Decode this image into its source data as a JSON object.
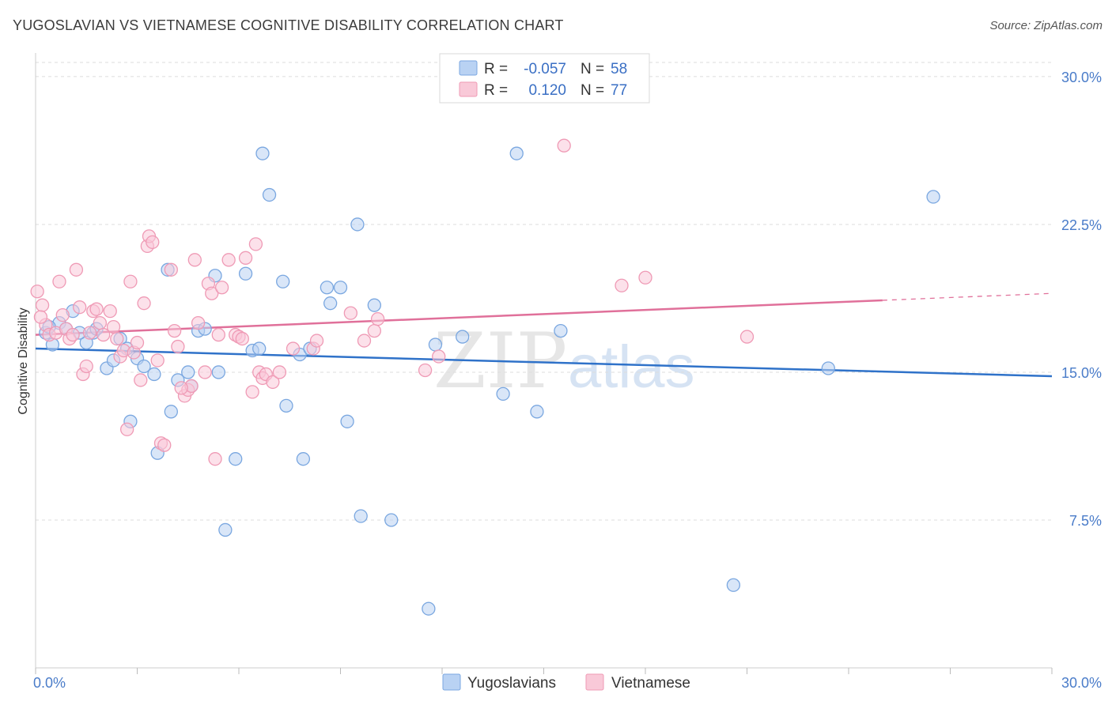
{
  "header": {
    "title": "YUGOSLAVIAN VS VIETNAMESE COGNITIVE DISABILITY CORRELATION CHART",
    "source": "Source: ZipAtlas.com"
  },
  "watermark": {
    "zip": "ZIP",
    "atlas": "atlas"
  },
  "chart_data": {
    "type": "scatter",
    "xlabel": "",
    "ylabel": "Cognitive Disability",
    "xlim": [
      0,
      30
    ],
    "ylim": [
      0,
      31.2
    ],
    "x_tick_labels": [
      {
        "value": 0,
        "label": "0.0%"
      },
      {
        "value": 30,
        "label": "30.0%"
      }
    ],
    "y_tick_labels": [
      {
        "value": 7.5,
        "label": "7.5%"
      },
      {
        "value": 15,
        "label": "15.0%"
      },
      {
        "value": 22.5,
        "label": "22.5%"
      },
      {
        "value": 30,
        "label": "30.0%"
      }
    ],
    "grid": true,
    "legend": {
      "position": "top-center",
      "rows": [
        {
          "r_label": "R =",
          "r_value": "-0.057",
          "n_label": "N =",
          "n_value": "58"
        },
        {
          "r_label": "R =",
          "r_value": "0.120",
          "n_label": "N =",
          "n_value": "77"
        }
      ]
    },
    "series": [
      {
        "name": "Yugoslavians",
        "color": "#7aa7e0",
        "fill": "#b9d2f3",
        "trend_color": "#2f72c9",
        "trend": {
          "x0": 0,
          "y0": 16.2,
          "x1": 30,
          "y1": 14.8,
          "dashed_from": null
        },
        "points": [
          [
            0.3,
            17.0
          ],
          [
            0.5,
            16.4
          ],
          [
            0.7,
            17.5
          ],
          [
            0.9,
            17.2
          ],
          [
            1.1,
            18.1
          ],
          [
            1.5,
            16.5
          ],
          [
            1.7,
            17.0
          ],
          [
            1.8,
            17.2
          ],
          [
            2.1,
            15.2
          ],
          [
            2.3,
            15.6
          ],
          [
            2.5,
            16.7
          ],
          [
            2.7,
            16.2
          ],
          [
            3.0,
            15.7
          ],
          [
            3.2,
            15.3
          ],
          [
            2.8,
            12.5
          ],
          [
            3.5,
            14.9
          ],
          [
            3.6,
            10.9
          ],
          [
            3.9,
            20.2
          ],
          [
            4.0,
            13.0
          ],
          [
            4.2,
            14.6
          ],
          [
            4.5,
            15.0
          ],
          [
            4.6,
            14.3
          ],
          [
            4.8,
            17.1
          ],
          [
            5.0,
            17.2
          ],
          [
            5.3,
            19.9
          ],
          [
            5.4,
            15.0
          ],
          [
            5.6,
            7.0
          ],
          [
            5.9,
            10.6
          ],
          [
            6.2,
            20.0
          ],
          [
            6.4,
            16.1
          ],
          [
            6.6,
            16.2
          ],
          [
            6.7,
            26.1
          ],
          [
            6.9,
            24.0
          ],
          [
            7.3,
            19.6
          ],
          [
            7.4,
            13.3
          ],
          [
            7.8,
            15.9
          ],
          [
            7.9,
            10.6
          ],
          [
            8.1,
            16.2
          ],
          [
            8.6,
            19.3
          ],
          [
            8.7,
            18.5
          ],
          [
            9.0,
            19.3
          ],
          [
            9.2,
            12.5
          ],
          [
            9.5,
            22.5
          ],
          [
            9.6,
            7.7
          ],
          [
            10.0,
            18.4
          ],
          [
            10.5,
            7.5
          ],
          [
            11.6,
            3.0
          ],
          [
            11.8,
            16.4
          ],
          [
            12.6,
            16.8
          ],
          [
            13.8,
            13.9
          ],
          [
            14.2,
            26.1
          ],
          [
            14.8,
            13.0
          ],
          [
            15.5,
            17.1
          ],
          [
            20.6,
            4.2
          ],
          [
            23.4,
            15.2
          ],
          [
            26.5,
            23.9
          ],
          [
            0.4,
            17.3
          ],
          [
            1.3,
            17.0
          ]
        ]
      },
      {
        "name": "Vietnamese",
        "color": "#ef9ab5",
        "fill": "#f9c9d8",
        "trend_color": "#e0709a",
        "trend": {
          "x0": 0,
          "y0": 16.9,
          "x1": 30,
          "y1": 19.0,
          "dashed_from": 25
        },
        "points": [
          [
            0.05,
            19.1
          ],
          [
            0.2,
            18.4
          ],
          [
            0.3,
            17.4
          ],
          [
            0.4,
            16.9
          ],
          [
            0.6,
            17.0
          ],
          [
            0.7,
            19.6
          ],
          [
            0.8,
            17.9
          ],
          [
            0.9,
            17.2
          ],
          [
            1.0,
            16.7
          ],
          [
            1.1,
            16.9
          ],
          [
            1.2,
            20.2
          ],
          [
            1.3,
            18.3
          ],
          [
            1.4,
            14.9
          ],
          [
            1.5,
            15.3
          ],
          [
            1.7,
            18.1
          ],
          [
            1.8,
            18.2
          ],
          [
            1.9,
            17.5
          ],
          [
            2.0,
            16.9
          ],
          [
            2.2,
            18.1
          ],
          [
            2.4,
            16.7
          ],
          [
            2.5,
            15.8
          ],
          [
            2.6,
            16.1
          ],
          [
            2.7,
            12.1
          ],
          [
            2.8,
            19.6
          ],
          [
            2.9,
            16.0
          ],
          [
            3.1,
            14.6
          ],
          [
            3.2,
            18.5
          ],
          [
            3.3,
            21.4
          ],
          [
            3.35,
            21.9
          ],
          [
            3.45,
            21.6
          ],
          [
            3.6,
            15.6
          ],
          [
            3.7,
            11.4
          ],
          [
            3.8,
            11.3
          ],
          [
            4.0,
            20.2
          ],
          [
            4.1,
            17.1
          ],
          [
            4.2,
            16.3
          ],
          [
            4.4,
            13.8
          ],
          [
            4.5,
            14.1
          ],
          [
            4.6,
            14.3
          ],
          [
            4.7,
            20.7
          ],
          [
            4.8,
            17.5
          ],
          [
            5.0,
            15.0
          ],
          [
            5.1,
            19.5
          ],
          [
            5.2,
            19.0
          ],
          [
            5.3,
            10.6
          ],
          [
            5.5,
            19.3
          ],
          [
            5.7,
            20.7
          ],
          [
            5.9,
            16.9
          ],
          [
            6.0,
            16.8
          ],
          [
            6.2,
            20.8
          ],
          [
            6.4,
            14.0
          ],
          [
            6.5,
            21.5
          ],
          [
            6.6,
            15.0
          ],
          [
            6.7,
            14.7
          ],
          [
            6.8,
            14.9
          ],
          [
            7.0,
            14.5
          ],
          [
            7.2,
            15.0
          ],
          [
            7.6,
            16.2
          ],
          [
            8.2,
            16.2
          ],
          [
            8.3,
            16.6
          ],
          [
            9.3,
            18.0
          ],
          [
            9.7,
            16.6
          ],
          [
            10.0,
            17.1
          ],
          [
            10.1,
            17.7
          ],
          [
            11.5,
            15.1
          ],
          [
            11.9,
            15.8
          ],
          [
            15.6,
            26.5
          ],
          [
            17.3,
            19.4
          ],
          [
            18.0,
            19.8
          ],
          [
            21.0,
            16.8
          ],
          [
            0.15,
            17.8
          ],
          [
            1.6,
            17.0
          ],
          [
            2.3,
            17.3
          ],
          [
            3.0,
            16.5
          ],
          [
            4.3,
            14.2
          ],
          [
            5.4,
            16.9
          ],
          [
            6.1,
            16.7
          ]
        ]
      }
    ]
  }
}
